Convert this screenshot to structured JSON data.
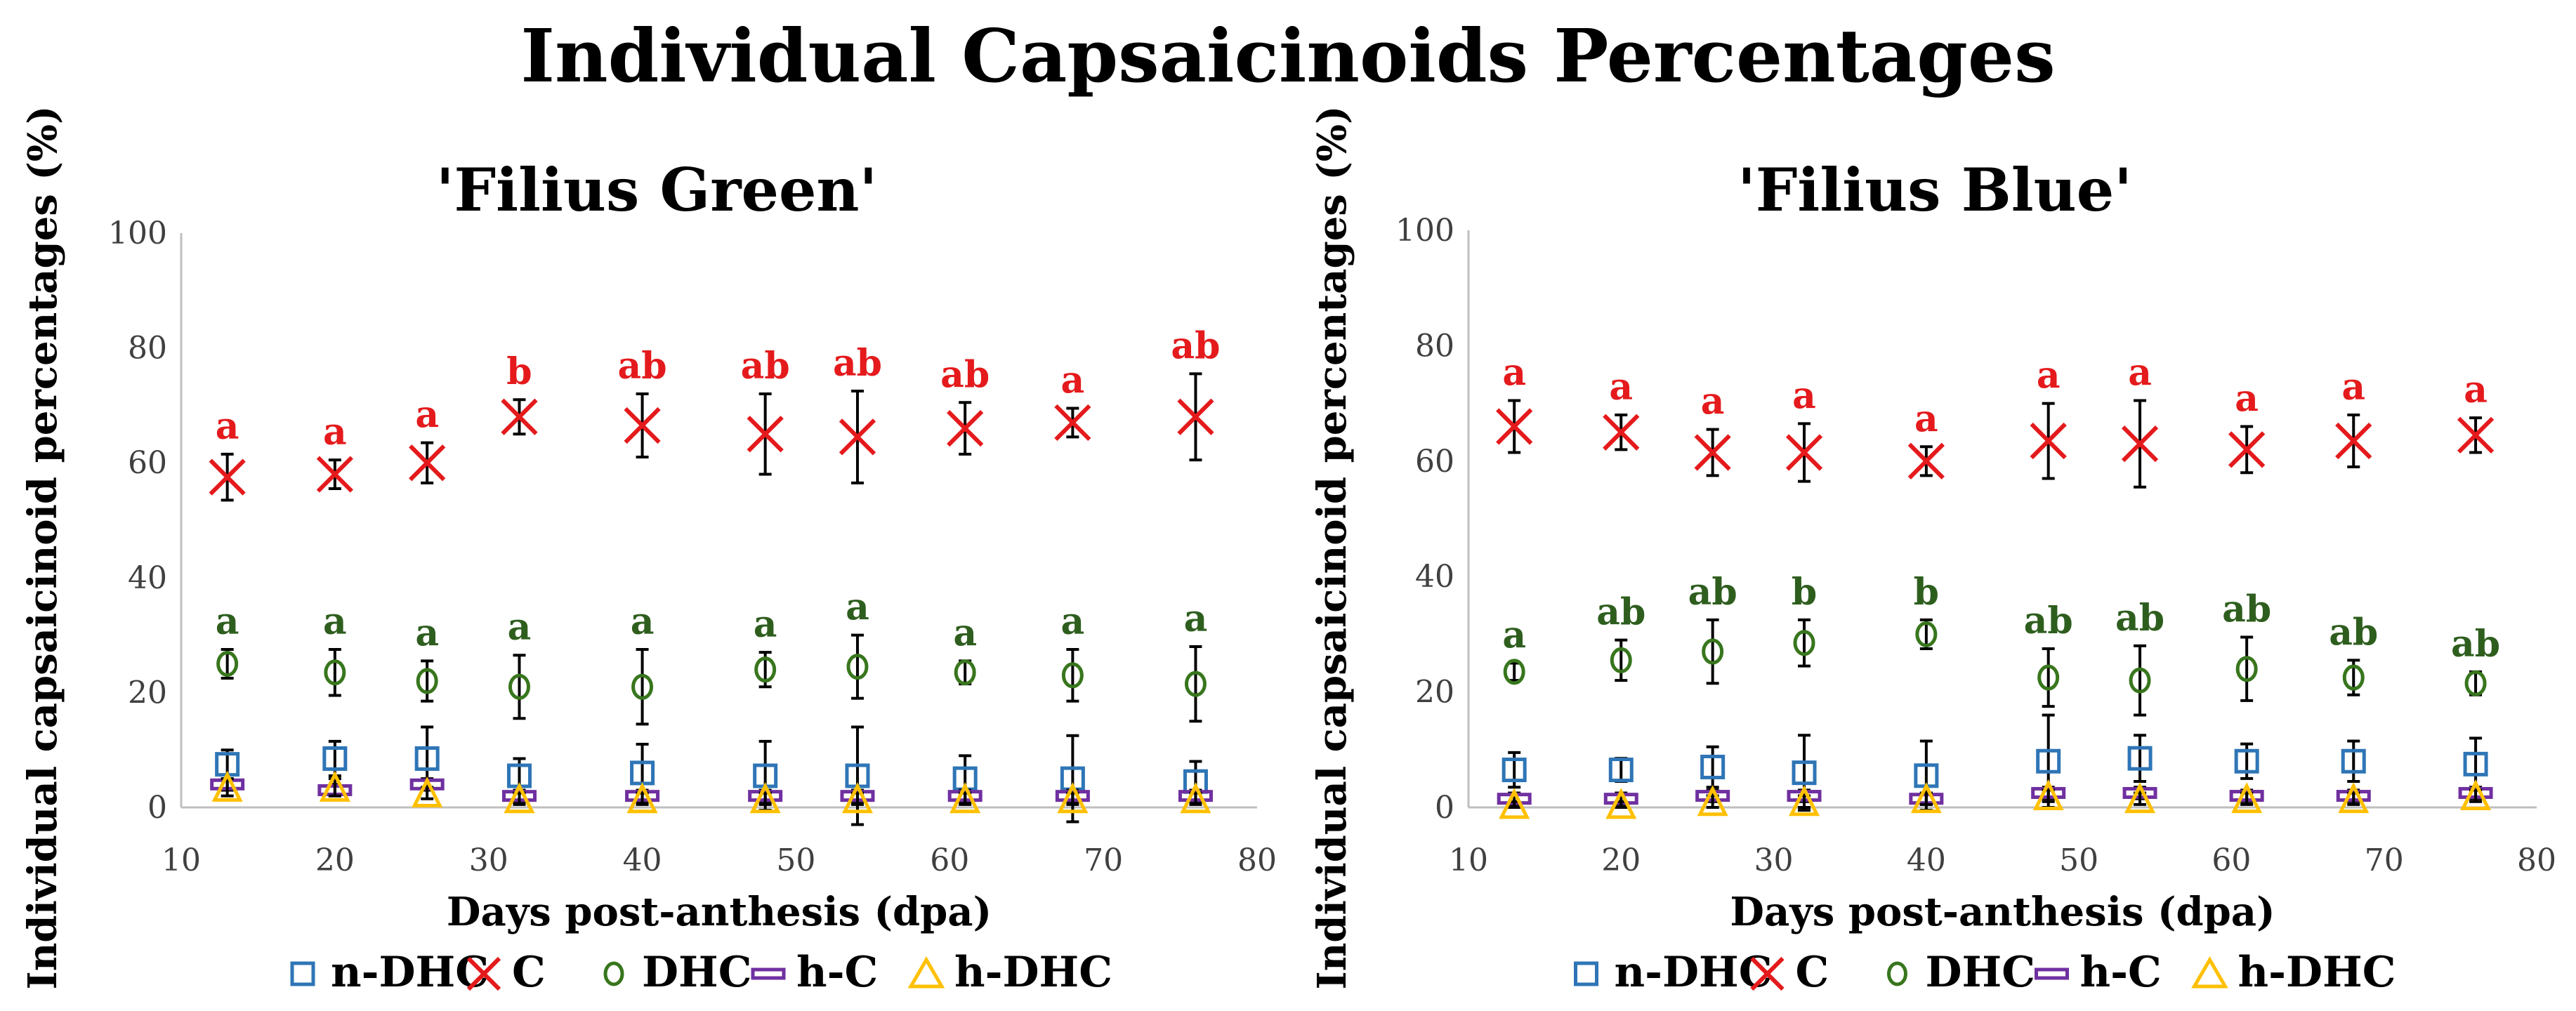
{
  "title": "Individual Capsaicinoids Percentages",
  "colors": {
    "n-DHC": "#2E75B6",
    "C": "#E41A1C",
    "DHC": "#38761D",
    "h-C": "#7030A0",
    "h-DHC": "#FFC000",
    "letters_C": "#E41A1C",
    "letters_DHC": "#2E5E1E",
    "axis": "#BFBFBF",
    "errorbar": "#000000"
  },
  "chart_data": [
    {
      "type": "scatter",
      "title": "'Filius Green'",
      "xlabel": "Days post-anthesis (dpa)",
      "ylabel": "Individual capsaicinoid percentages (%)",
      "xlim": [
        10,
        80
      ],
      "ylim": [
        0,
        100
      ],
      "xticks": [
        10,
        20,
        30,
        40,
        50,
        60,
        70,
        80
      ],
      "yticks": [
        0,
        20,
        40,
        60,
        80,
        100
      ],
      "x": [
        13,
        20,
        26,
        32,
        40,
        48,
        54,
        61,
        68,
        76
      ],
      "series": [
        {
          "name": "n-DHC",
          "marker": "square",
          "values": [
            7.5,
            8.5,
            8.5,
            5.5,
            6,
            5.5,
            5.5,
            5,
            5,
            4.5
          ],
          "errors": [
            2.5,
            3,
            5.5,
            3,
            5,
            6,
            8.5,
            4,
            7.5,
            3.5
          ]
        },
        {
          "name": "C",
          "marker": "x",
          "values": [
            57.5,
            58,
            60,
            68,
            66.5,
            65,
            64.5,
            66,
            67,
            68
          ],
          "errors": [
            4,
            2.5,
            3.5,
            3,
            5.5,
            7,
            8,
            4.5,
            2.5,
            7.5
          ],
          "letters": [
            "a",
            "a",
            "a",
            "b",
            "ab",
            "ab",
            "ab",
            "ab",
            "a",
            "ab"
          ]
        },
        {
          "name": "DHC",
          "marker": "circle",
          "values": [
            25,
            23.5,
            22,
            21,
            21,
            24,
            24.5,
            23.5,
            23,
            21.5
          ],
          "errors": [
            2.5,
            4,
            3.5,
            5.5,
            6.5,
            3,
            5.5,
            2,
            4.5,
            6.5
          ],
          "letters": [
            "a",
            "a",
            "a",
            "a",
            "a",
            "a",
            "a",
            "a",
            "a",
            "a"
          ]
        },
        {
          "name": "h-C",
          "marker": "dash",
          "values": [
            4,
            3,
            4,
            2,
            2,
            2,
            2,
            2,
            2,
            2
          ],
          "errors": [
            1,
            1,
            1,
            1,
            1,
            1,
            1,
            1,
            1,
            1
          ]
        },
        {
          "name": "h-DHC",
          "marker": "triangle",
          "values": [
            3.5,
            3.5,
            2.5,
            1.5,
            1.5,
            1.5,
            1.5,
            1.5,
            1.5,
            1.5
          ],
          "errors": [
            1.5,
            1.5,
            1,
            1,
            1,
            1,
            1,
            1,
            1,
            1
          ]
        }
      ]
    },
    {
      "type": "scatter",
      "title": "'Filius Blue'",
      "xlabel": "Days post-anthesis (dpa)",
      "ylabel": "Individual capsaicinoid percentages (%)",
      "xlim": [
        10,
        80
      ],
      "ylim": [
        0,
        100
      ],
      "xticks": [
        10,
        20,
        30,
        40,
        50,
        60,
        70,
        80
      ],
      "yticks": [
        0,
        20,
        40,
        60,
        80,
        100
      ],
      "x": [
        13,
        20,
        26,
        32,
        40,
        48,
        54,
        61,
        68,
        76
      ],
      "series": [
        {
          "name": "n-DHC",
          "marker": "square",
          "values": [
            6.5,
            6.5,
            7,
            6,
            5.5,
            8,
            8.5,
            8,
            8,
            7.5
          ],
          "errors": [
            3,
            2,
            3.5,
            6.5,
            6,
            8,
            4,
            3,
            3.5,
            4.5
          ]
        },
        {
          "name": "C",
          "marker": "x",
          "values": [
            66,
            65,
            61.5,
            61.5,
            60,
            63.5,
            63,
            62,
            63.5,
            64.5
          ],
          "errors": [
            4.5,
            3,
            4,
            5,
            2.5,
            6.5,
            7.5,
            4,
            4.5,
            3
          ]
        },
        {
          "name": "DHC",
          "marker": "circle",
          "values": [
            23.5,
            25.5,
            27,
            28.5,
            30,
            22.5,
            22,
            24,
            22.5,
            21.5
          ],
          "errors": [
            1.5,
            3.5,
            5.5,
            4,
            2.5,
            5,
            6,
            5.5,
            3,
            2
          ],
          "letters": [
            "a",
            "ab",
            "ab",
            "b",
            "b",
            "ab",
            "ab",
            "ab",
            "ab",
            "ab"
          ]
        },
        {
          "name": "h-C",
          "marker": "dash",
          "values": [
            1.5,
            1.5,
            2,
            2,
            1.5,
            2.5,
            2.5,
            2,
            2,
            2.5
          ],
          "errors": [
            1,
            1,
            1,
            1,
            1,
            1,
            1,
            1,
            1,
            1
          ]
        },
        {
          "name": "h-DHC",
          "marker": "triangle",
          "values": [
            0.5,
            0.5,
            1,
            1,
            1.5,
            2,
            1.5,
            1.5,
            1.5,
            2
          ],
          "errors": [
            0.5,
            0.5,
            1,
            1,
            1,
            1,
            1,
            1,
            1,
            1
          ]
        }
      ],
      "letters_C": [
        "a",
        "a",
        "a",
        "a",
        "a",
        "a",
        "a",
        "a",
        "a",
        "a"
      ]
    }
  ]
}
